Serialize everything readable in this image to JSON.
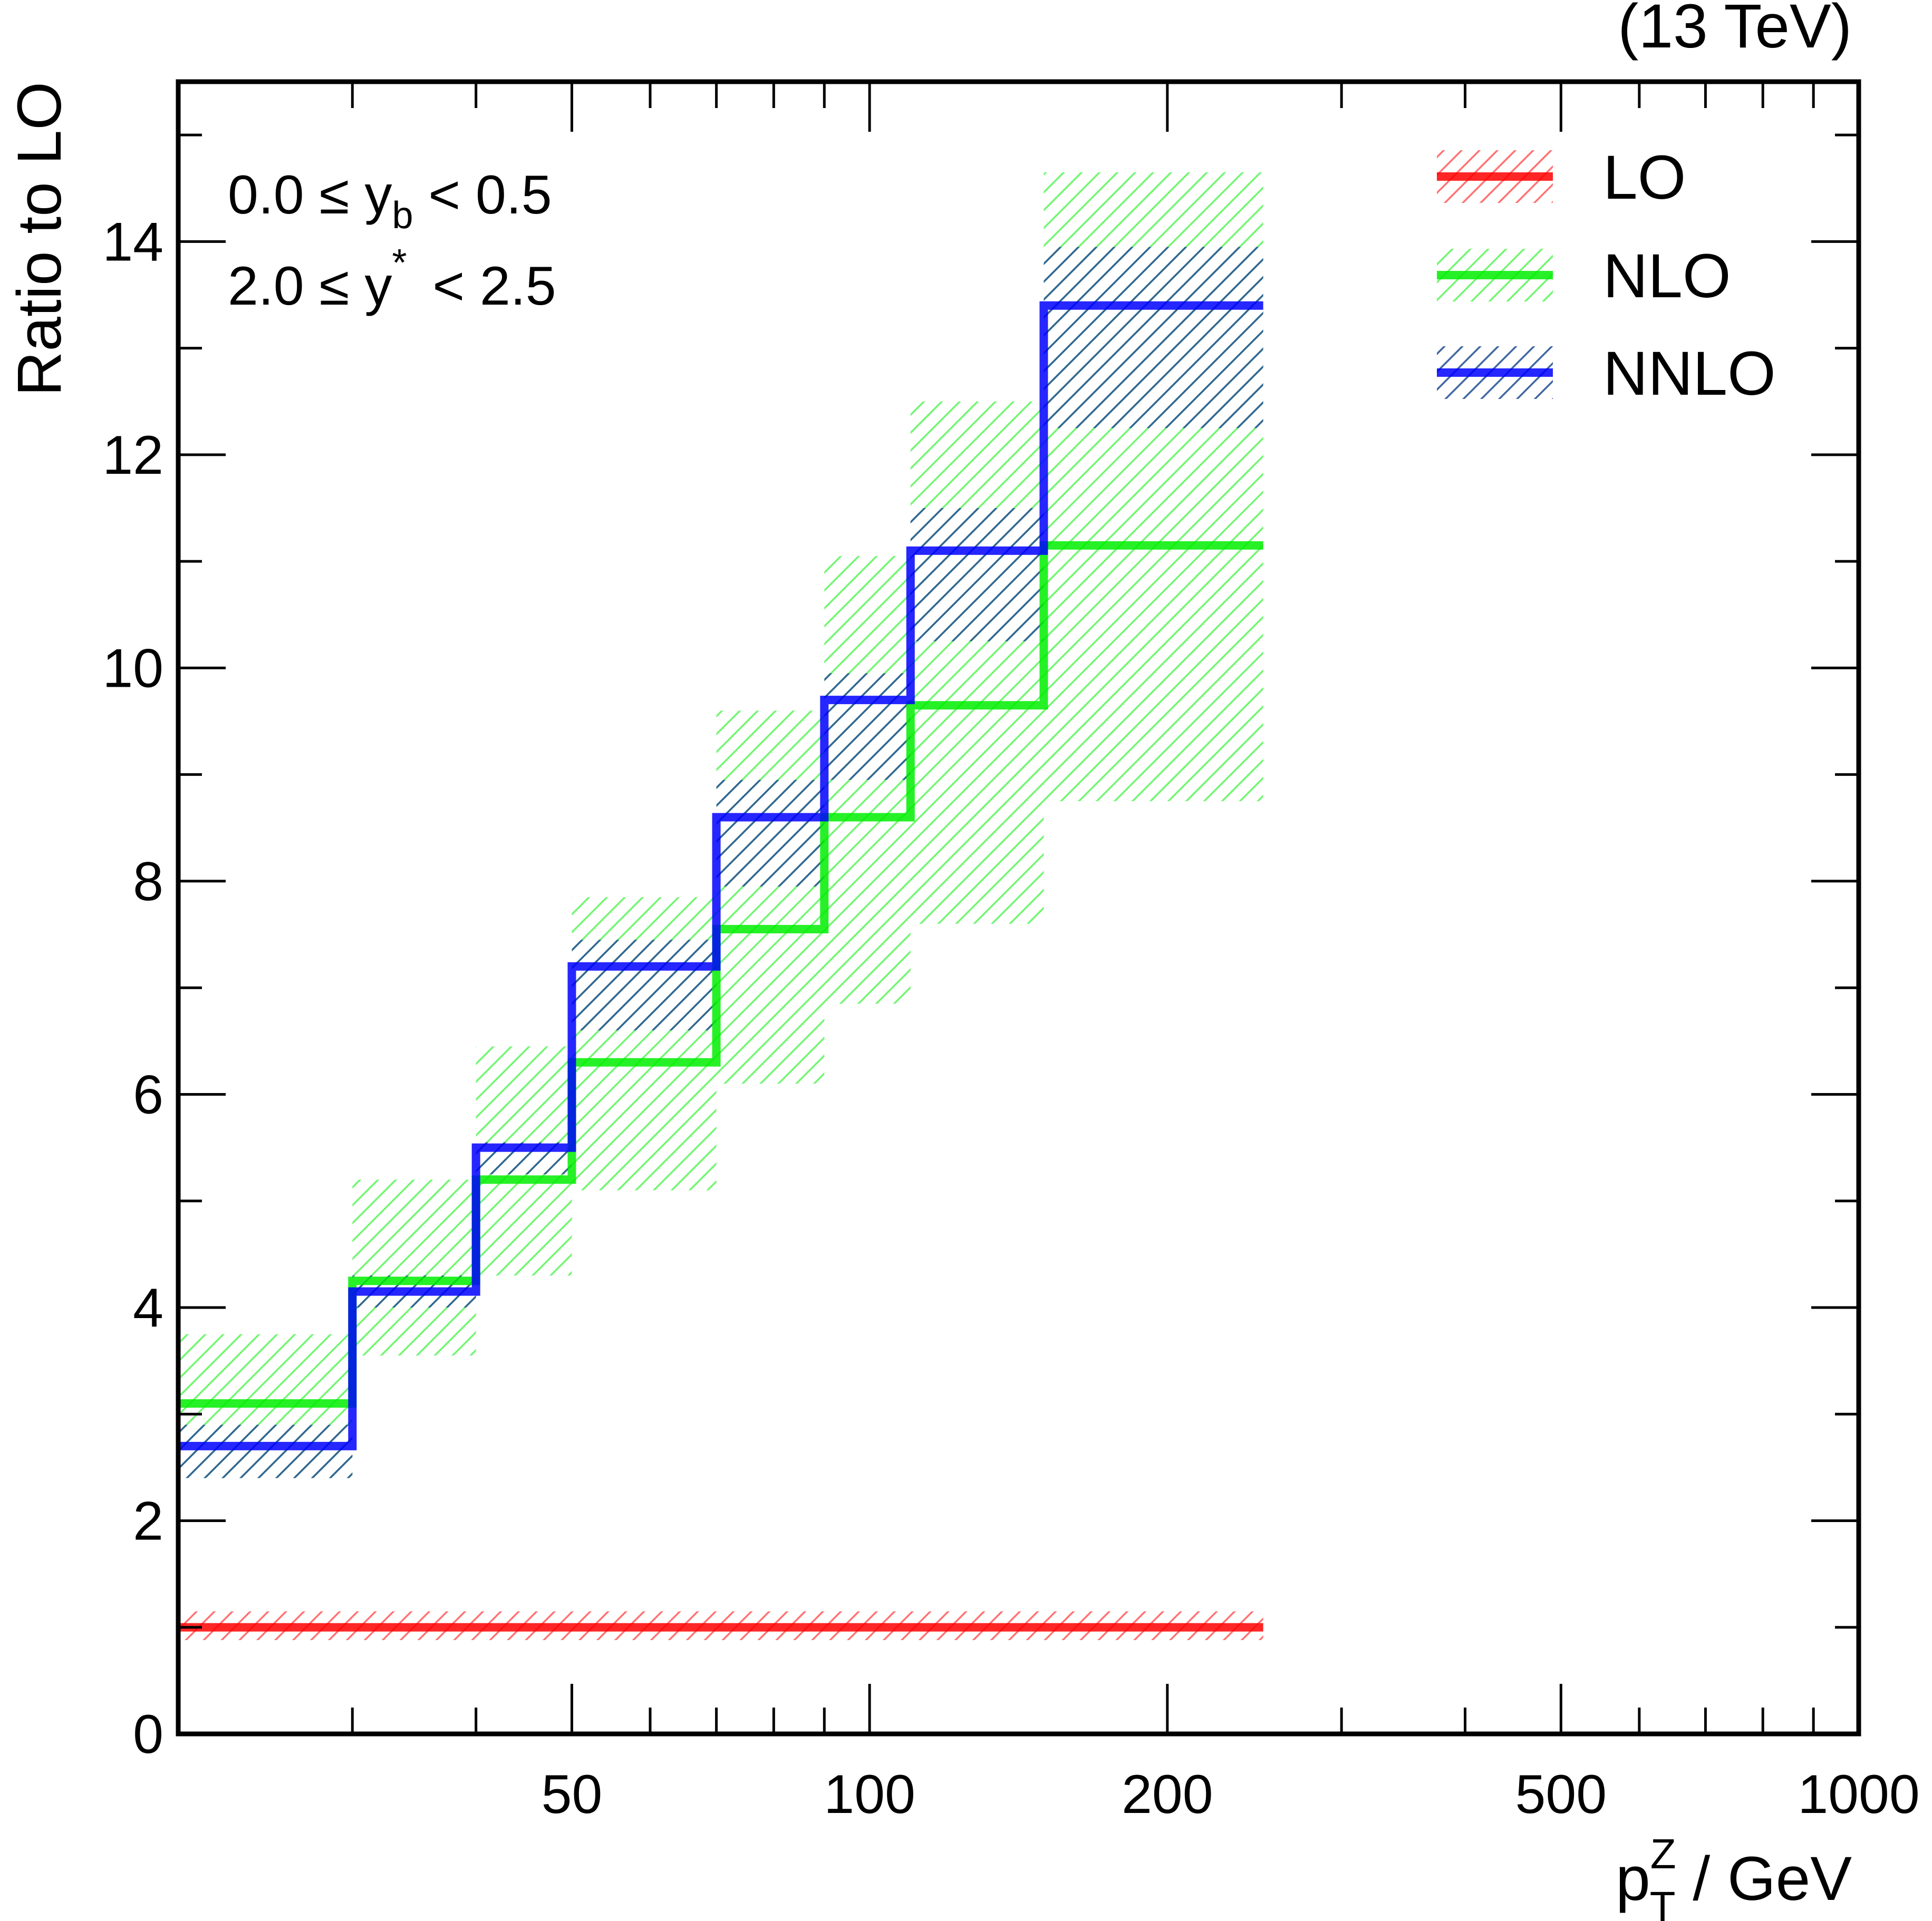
{
  "chart_data": {
    "type": "step",
    "header": "(13 TeV)",
    "ylabel": "Ratio to LO",
    "xlabel": {
      "base": "p",
      "sup": "Z",
      "sub": "T",
      "suffix": " / GeV"
    },
    "xscale": "log",
    "xlim": [
      20,
      1000
    ],
    "ylim": [
      0,
      15.5
    ],
    "x_ticks": [
      {
        "value": 50,
        "label": "50"
      },
      {
        "value": 100,
        "label": "100"
      },
      {
        "value": 200,
        "label": "200"
      },
      {
        "value": 500,
        "label": "500"
      },
      {
        "value": 1000,
        "label": "1000"
      }
    ],
    "y_ticks": [
      {
        "value": 0,
        "label": "0"
      },
      {
        "value": 2,
        "label": "2"
      },
      {
        "value": 4,
        "label": "4"
      },
      {
        "value": 6,
        "label": "6"
      },
      {
        "value": 8,
        "label": "8"
      },
      {
        "value": 10,
        "label": "10"
      },
      {
        "value": 12,
        "label": "12"
      },
      {
        "value": 14,
        "label": "14"
      }
    ],
    "annotations": {
      "line1": {
        "prefix": "0.0 ≤ y",
        "sub": "b",
        "suffix": " < 0.5"
      },
      "line2": {
        "prefix": "2.0 ≤ y",
        "sup": "*",
        "suffix": " < 2.5"
      }
    },
    "bin_edges": [
      20,
      30,
      40,
      50,
      70,
      90,
      110,
      150,
      250
    ],
    "legend_position": "top-right",
    "series": [
      {
        "name": "LO",
        "label": "LO",
        "color": "#ff0000",
        "values": [
          1,
          1,
          1,
          1,
          1,
          1,
          1,
          1
        ],
        "err_low": [
          0.88,
          0.88,
          0.88,
          0.88,
          0.88,
          0.88,
          0.88,
          0.88
        ],
        "err_high": [
          1.15,
          1.15,
          1.15,
          1.15,
          1.15,
          1.15,
          1.15,
          1.15
        ]
      },
      {
        "name": "NLO",
        "label": "NLO",
        "color": "#00ee00",
        "values": [
          3.1,
          4.25,
          5.2,
          6.3,
          7.55,
          8.6,
          9.65,
          11.15
        ],
        "err_low": [
          2.4,
          3.55,
          4.3,
          5.1,
          6.1,
          6.85,
          7.6,
          8.75
        ],
        "err_high": [
          3.75,
          5.2,
          6.45,
          7.85,
          9.6,
          11.05,
          12.5,
          14.65
        ]
      },
      {
        "name": "NNLO",
        "label": "NNLO",
        "color": "#0000ff",
        "hatch": "#2b5797",
        "values": [
          2.7,
          4.15,
          5.5,
          7.2,
          8.6,
          9.7,
          11.1,
          13.4
        ],
        "err_low": [
          2.4,
          4.0,
          5.25,
          6.6,
          7.95,
          8.95,
          10.25,
          12.25
        ],
        "err_high": [
          2.9,
          4.3,
          5.55,
          7.45,
          8.95,
          9.95,
          11.5,
          13.95
        ]
      }
    ]
  }
}
